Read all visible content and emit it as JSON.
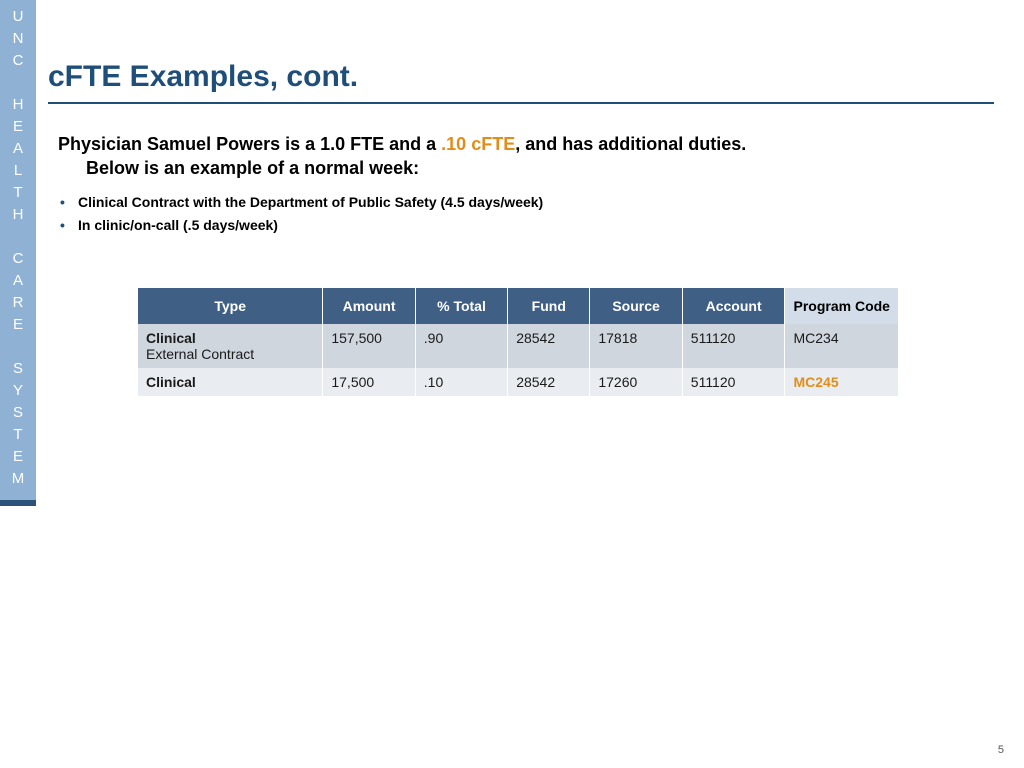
{
  "sidebar": {
    "label": "UNC HEALTH CARE SYSTEM"
  },
  "title": "cFTE Examples, cont.",
  "intro": {
    "pre": "Physician Samuel Powers is a 1.0 FTE and a ",
    "highlight": ".10 cFTE",
    "post": ", and has additional duties.",
    "line2": "Below is an example of a normal week:"
  },
  "bullets": [
    "Clinical Contract with the Department of Public Safety (4.5 days/week)",
    "In clinic/on-call (.5 days/week)"
  ],
  "table": {
    "headers": [
      "Type",
      "Amount",
      "% Total",
      "Fund",
      "Source",
      "Account",
      "Program Code"
    ],
    "rows": [
      {
        "type_main": "Clinical",
        "type_sub": "External Contract",
        "amount": "157,500",
        "pct": ".90",
        "fund": "28542",
        "source": "17818",
        "account": "511120",
        "program": "MC234",
        "program_highlight": false
      },
      {
        "type_main": "Clinical",
        "type_sub": "",
        "amount": "17,500",
        "pct": ".10",
        "fund": "28542",
        "source": "17260",
        "account": "511120",
        "program": "MC245",
        "program_highlight": true
      }
    ]
  },
  "page_number": "5"
}
